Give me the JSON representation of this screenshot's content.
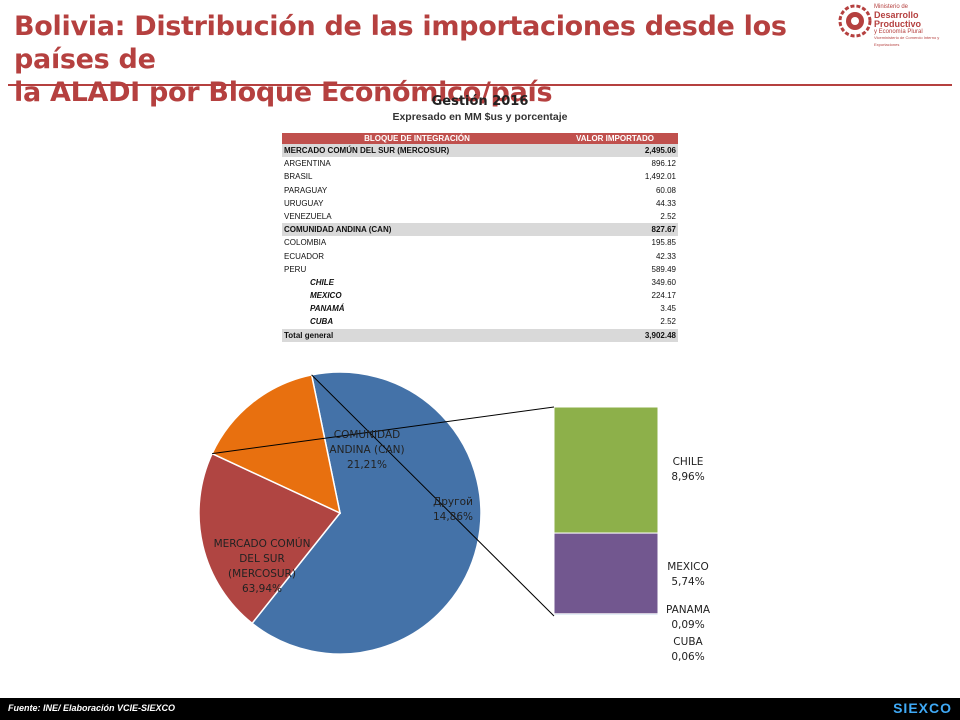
{
  "header": {
    "title_line1": "Bolivia: Distribución de las importaciones desde los países de",
    "title_line2": "la ALADI por Bloque Económico/país",
    "logo_small": "Ministerio de",
    "logo_main": "Desarrollo Productivo",
    "logo_sub": "y Economía Plural",
    "logo_tag": "Viceministerio de Comercio Interno y Exportaciones"
  },
  "subtitle": {
    "line1": "Gestión 2016",
    "line2": "Expresado en MM $us y porcentaje"
  },
  "table": {
    "col_block": "BLOQUE DE INTEGRACIÓN",
    "col_value": "VALOR IMPORTADO",
    "rows": [
      {
        "label": "MERCADO COMÚN DEL SUR (MERCOSUR)",
        "value": "2,495.06",
        "kind": "group"
      },
      {
        "label": "ARGENTINA",
        "value": "896.12",
        "kind": "item"
      },
      {
        "label": "BRASIL",
        "value": "1,492.01",
        "kind": "item"
      },
      {
        "label": "PARAGUAY",
        "value": "60.08",
        "kind": "item"
      },
      {
        "label": "URUGUAY",
        "value": "44.33",
        "kind": "item"
      },
      {
        "label": "VENEZUELA",
        "value": "2.52",
        "kind": "item"
      },
      {
        "label": "COMUNIDAD ANDINA (CAN)",
        "value": "827.67",
        "kind": "group"
      },
      {
        "label": "COLOMBIA",
        "value": "195.85",
        "kind": "item"
      },
      {
        "label": "ECUADOR",
        "value": "42.33",
        "kind": "item"
      },
      {
        "label": "PERU",
        "value": "589.49",
        "kind": "item"
      },
      {
        "label": "CHILE",
        "value": "349.60",
        "kind": "sub"
      },
      {
        "label": "MEXICO",
        "value": "224.17",
        "kind": "sub"
      },
      {
        "label": "PANAMÁ",
        "value": "3.45",
        "kind": "sub"
      },
      {
        "label": "CUBA",
        "value": "2.52",
        "kind": "sub"
      },
      {
        "label": "Total general",
        "value": "3,902.48",
        "kind": "group"
      }
    ]
  },
  "chart_data": {
    "type": "pie",
    "slices": [
      {
        "name": "MERCADO COMÚN DEL SUR (MERCOSUR)",
        "label_lines": [
          "MERCADO COMÚN",
          "DEL SUR",
          "(MERCOSUR)"
        ],
        "value": 63.94,
        "pct_label": "63,94%",
        "color": "#4472a8"
      },
      {
        "name": "COMUNIDAD ANDINA (CAN)",
        "label_lines": [
          "COMUNIDAD",
          "ANDINA (CAN)"
        ],
        "value": 21.21,
        "pct_label": "21,21%",
        "color": "#b04542"
      },
      {
        "name": "Другой",
        "label_lines": [
          "Другой"
        ],
        "value": 14.86,
        "pct_label": "14,86%",
        "color": "#e8700f"
      }
    ],
    "breakdown": {
      "type": "stacked_bar",
      "of": "Другой",
      "segments": [
        {
          "name": "CHILE",
          "value": 8.96,
          "pct_label": "8,96%",
          "color": "#8db04a"
        },
        {
          "name": "MEXICO",
          "value": 5.74,
          "pct_label": "5,74%",
          "color": "#72578f"
        },
        {
          "name": "PANAMA",
          "value": 0.09,
          "pct_label": "0,09%",
          "color": "#4a8dc2"
        },
        {
          "name": "CUBA",
          "value": 0.06,
          "pct_label": "0,06%",
          "color": "#d9534f"
        }
      ]
    }
  },
  "footer": {
    "source": "Fuente: INE/ Elaboración VCIE-SIEXCO",
    "brand": "SIEXCO"
  }
}
